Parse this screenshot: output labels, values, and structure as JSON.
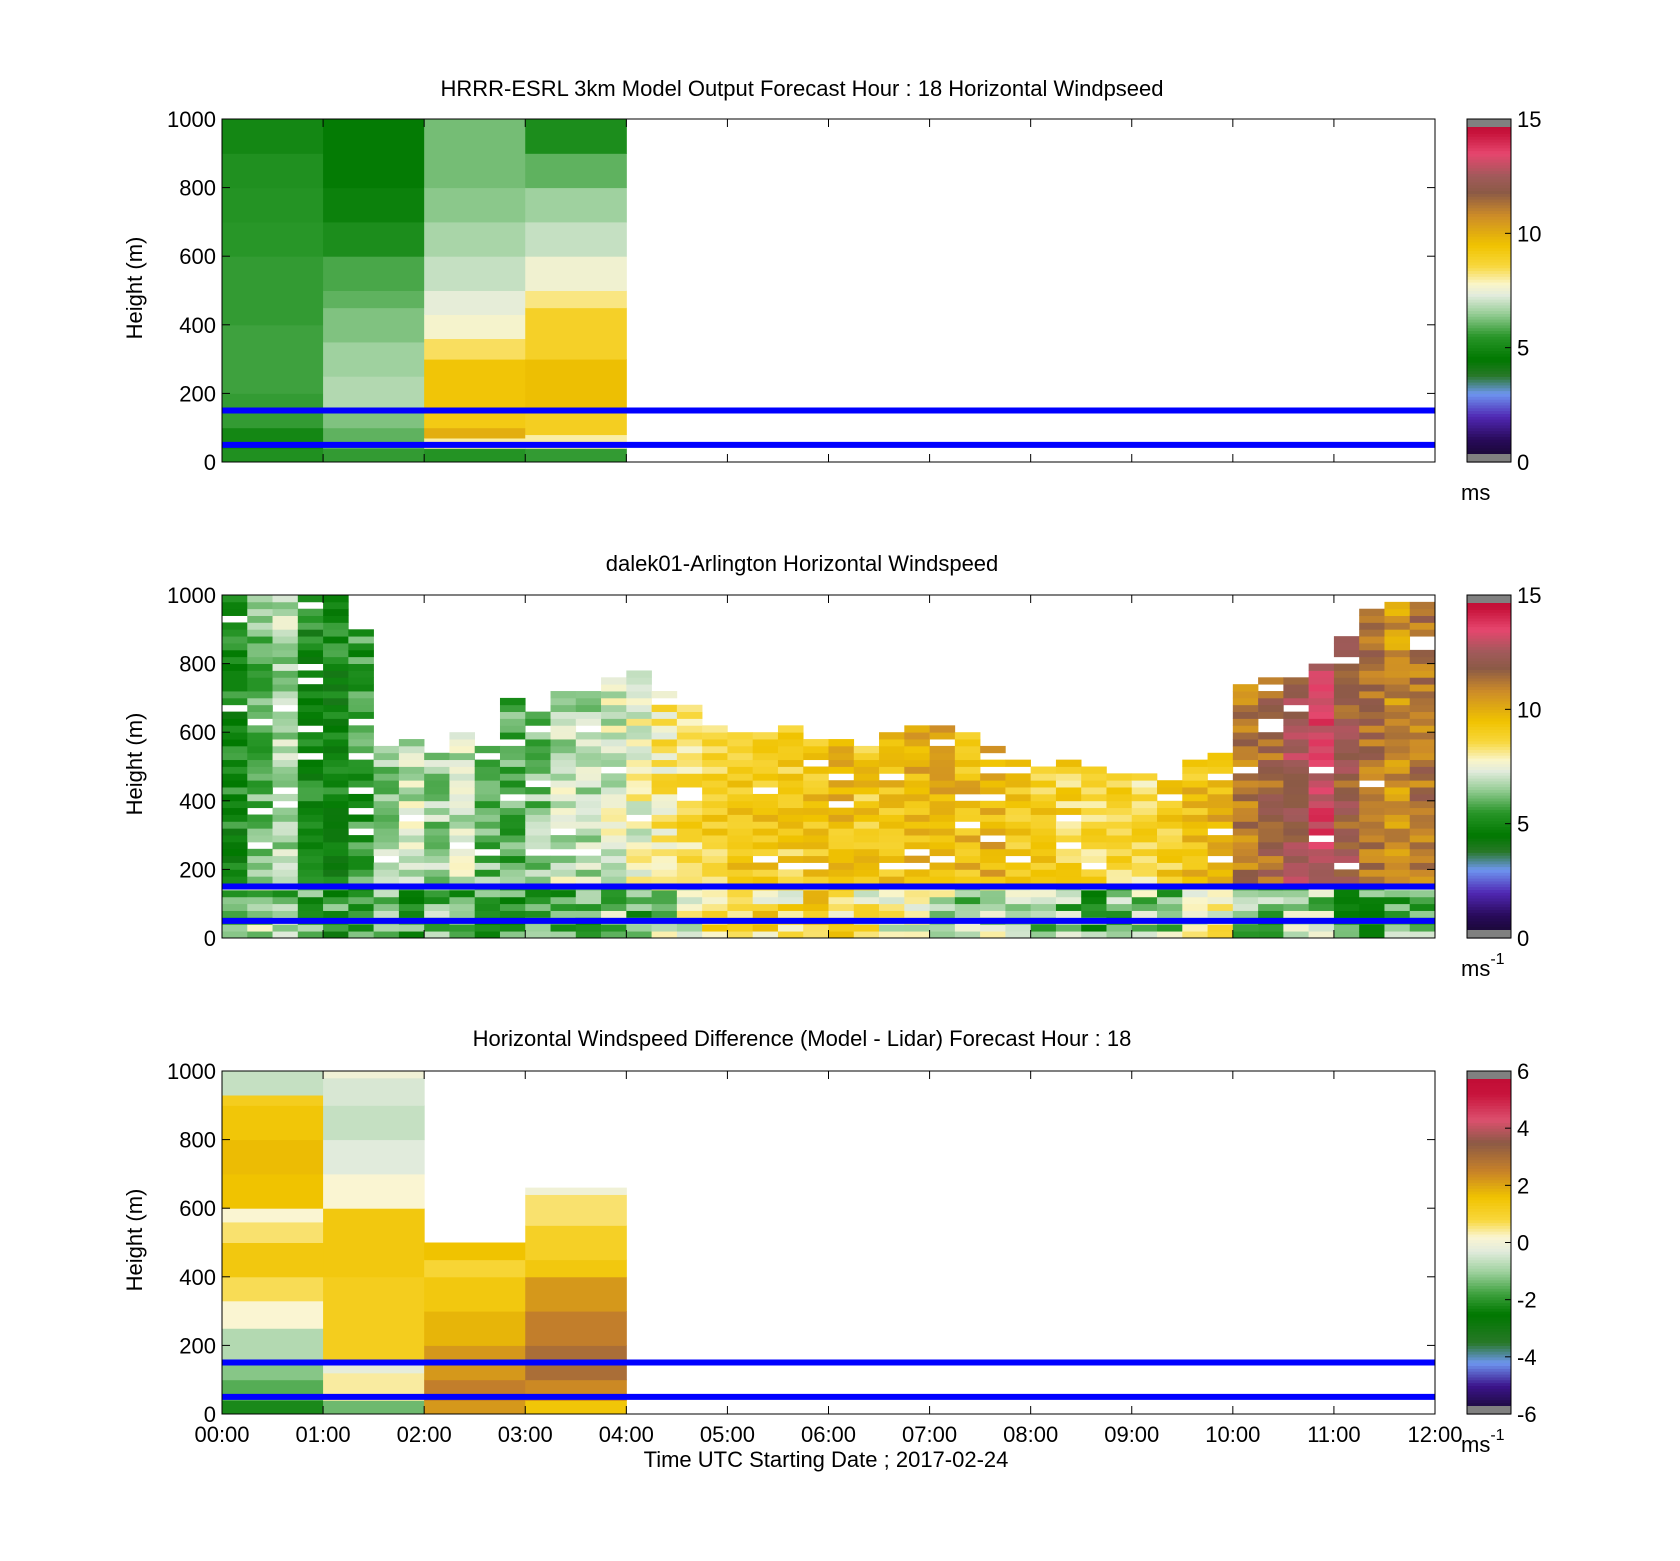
{
  "figure": {
    "xlabel": "Time UTC  Starting Date ; 2017-02-24",
    "x_tick_labels": [
      "00:00",
      "01:00",
      "02:00",
      "03:00",
      "04:00",
      "05:00",
      "06:00",
      "07:00",
      "08:00",
      "09:00",
      "10:00",
      "11:00",
      "12:00"
    ]
  },
  "chart_data": [
    {
      "type": "heatmap",
      "title": "HRRR-ESRL 3km Model Output   Forecast Hour : 18 Horizontal Windpseed",
      "ylabel": "Height (m)",
      "xlim": [
        0,
        12
      ],
      "ylim": [
        0,
        1000
      ],
      "y_ticks": [
        "0",
        "200",
        "400",
        "600",
        "800",
        "1000"
      ],
      "colorbar": {
        "ticks": [
          "0",
          "5",
          "10",
          "15"
        ],
        "range": [
          0,
          15
        ],
        "unit": "ms",
        "unit_sup": ""
      },
      "reference_lines_m": [
        50,
        150
      ],
      "grid": false,
      "x_hours": [
        0,
        1,
        2,
        3
      ],
      "cell_width_hours": 1,
      "heights_m": [
        [
          0,
          1000
        ]
      ],
      "values": [
        [
          [
            0,
            40,
            5.3
          ],
          [
            40,
            100,
            5.0
          ],
          [
            100,
            200,
            5.6
          ],
          [
            200,
            400,
            5.7
          ],
          [
            400,
            600,
            5.6
          ],
          [
            600,
            700,
            5.5
          ],
          [
            700,
            800,
            5.4
          ],
          [
            800,
            900,
            5.3
          ],
          [
            900,
            1000,
            5.0
          ]
        ],
        [
          [
            0,
            40,
            5.6
          ],
          [
            40,
            100,
            6.0
          ],
          [
            100,
            150,
            6.3
          ],
          [
            150,
            250,
            6.8
          ],
          [
            250,
            350,
            6.6
          ],
          [
            350,
            450,
            6.3
          ],
          [
            450,
            500,
            6.0
          ],
          [
            500,
            600,
            5.8
          ],
          [
            600,
            700,
            5.2
          ],
          [
            700,
            800,
            4.8
          ],
          [
            800,
            1000,
            4.6
          ]
        ],
        [
          [
            0,
            40,
            5.4
          ],
          [
            40,
            70,
            8.0
          ],
          [
            70,
            100,
            10.0
          ],
          [
            100,
            150,
            9.2
          ],
          [
            150,
            300,
            9.4
          ],
          [
            300,
            360,
            8.4
          ],
          [
            360,
            430,
            7.7
          ],
          [
            430,
            500,
            7.4
          ],
          [
            500,
            600,
            7.0
          ],
          [
            600,
            700,
            6.7
          ],
          [
            700,
            800,
            6.4
          ],
          [
            800,
            1000,
            6.2
          ]
        ],
        [
          [
            0,
            40,
            5.6
          ],
          [
            40,
            80,
            8.0
          ],
          [
            80,
            150,
            9.0
          ],
          [
            150,
            300,
            9.6
          ],
          [
            300,
            450,
            8.9
          ],
          [
            450,
            500,
            8.2
          ],
          [
            500,
            600,
            7.6
          ],
          [
            600,
            700,
            7.0
          ],
          [
            700,
            800,
            6.6
          ],
          [
            800,
            900,
            6.0
          ],
          [
            900,
            1000,
            5.2
          ]
        ]
      ]
    },
    {
      "type": "heatmap",
      "title": "dalek01-Arlington  Horizontal Windspeed",
      "ylabel": "Height (m)",
      "xlim": [
        0,
        12
      ],
      "ylim": [
        0,
        1000
      ],
      "y_ticks": [
        "0",
        "200",
        "400",
        "600",
        "800",
        "1000"
      ],
      "colorbar": {
        "ticks": [
          "0",
          "5",
          "10",
          "15"
        ],
        "range": [
          0,
          15
        ],
        "unit": "ms",
        "unit_sup": "-1"
      },
      "reference_lines_m": [
        50,
        150
      ],
      "grid": false,
      "x_hours": [
        0.0,
        0.25,
        0.5,
        0.75,
        1.0,
        1.25,
        1.5,
        1.75,
        2.0,
        2.25,
        2.5,
        2.75,
        3.0,
        3.25,
        3.5,
        3.75,
        4.0,
        4.25,
        4.5,
        4.75,
        5.0,
        5.25,
        5.5,
        5.75,
        6.0,
        6.25,
        6.5,
        6.75,
        7.0,
        7.25,
        7.5,
        7.75,
        8.0,
        8.25,
        8.5,
        8.75,
        9.0,
        9.25,
        9.5,
        9.75,
        10.0,
        10.25,
        10.5,
        10.75,
        11.0,
        11.25,
        11.5,
        11.75
      ],
      "cell_width_hours": 0.25,
      "column_top_m": [
        1000,
        1000,
        1000,
        1000,
        1000,
        900,
        560,
        580,
        540,
        600,
        560,
        700,
        660,
        720,
        740,
        760,
        780,
        720,
        680,
        620,
        600,
        600,
        640,
        580,
        580,
        560,
        600,
        620,
        640,
        600,
        560,
        520,
        520,
        520,
        500,
        480,
        480,
        460,
        520,
        540,
        740,
        760,
        760,
        800,
        880,
        960,
        980,
        980
      ],
      "column_base_kmh": [
        5.0,
        6.2,
        6.8,
        5.0,
        5.0,
        5.5,
        6.5,
        7.0,
        6.6,
        7.0,
        6.2,
        5.8,
        6.4,
        7.0,
        6.8,
        7.2,
        7.6,
        8.2,
        8.6,
        8.8,
        9.2,
        9.4,
        9.0,
        9.4,
        9.6,
        9.2,
        9.4,
        9.8,
        10.0,
        9.6,
        9.8,
        9.2,
        9.0,
        8.8,
        8.6,
        8.9,
        8.5,
        9.0,
        9.4,
        9.8,
        11.0,
        11.5,
        12.4,
        13.2,
        12.0,
        11.4,
        10.6,
        11.2
      ],
      "column_low_kmh": [
        6.4,
        6.6,
        6.2,
        5.6,
        5.4,
        6.0,
        6.2,
        5.6,
        6.4,
        5.8,
        5.4,
        5.2,
        5.6,
        5.4,
        6.0,
        6.4,
        6.0,
        7.0,
        7.2,
        8.4,
        9.0,
        8.6,
        8.4,
        9.2,
        8.8,
        8.0,
        7.4,
        7.0,
        7.2,
        6.8,
        7.0,
        6.6,
        6.4,
        6.2,
        5.8,
        6.0,
        6.8,
        6.4,
        7.4,
        7.6,
        6.0,
        6.2,
        6.6,
        6.8,
        5.8,
        5.6,
        6.0,
        6.2
      ]
    },
    {
      "type": "heatmap",
      "title": "Horizontal Windspeed Difference (Model - Lidar) Forecast Hour : 18",
      "ylabel": "Height (m)",
      "xlim": [
        0,
        12
      ],
      "ylim": [
        0,
        1000
      ],
      "y_ticks": [
        "0",
        "200",
        "400",
        "600",
        "800",
        "1000"
      ],
      "colorbar": {
        "ticks": [
          "-6",
          "-4",
          "-2",
          "0",
          "2",
          "4",
          "6"
        ],
        "range": [
          -6,
          6
        ],
        "unit": "ms",
        "unit_sup": "-1"
      },
      "reference_lines_m": [
        50,
        150
      ],
      "grid": false,
      "x_hours": [
        0,
        1,
        2,
        3
      ],
      "cell_width_hours": 1,
      "values": [
        [
          [
            0,
            40,
            -2.2
          ],
          [
            40,
            100,
            -1.6
          ],
          [
            100,
            160,
            -1.2
          ],
          [
            160,
            250,
            -0.8
          ],
          [
            250,
            330,
            0.2
          ],
          [
            330,
            400,
            0.7
          ],
          [
            400,
            500,
            1.4
          ],
          [
            500,
            560,
            0.6
          ],
          [
            560,
            600,
            0.2
          ],
          [
            600,
            700,
            1.6
          ],
          [
            700,
            800,
            1.7
          ],
          [
            800,
            900,
            1.5
          ],
          [
            900,
            930,
            1.2
          ],
          [
            930,
            1000,
            -0.6
          ]
        ],
        [
          [
            0,
            40,
            -1.4
          ],
          [
            40,
            120,
            0.4
          ],
          [
            120,
            160,
            -0.2
          ],
          [
            160,
            400,
            1.2
          ],
          [
            400,
            600,
            1.4
          ],
          [
            600,
            700,
            0.2
          ],
          [
            700,
            800,
            -0.3
          ],
          [
            800,
            900,
            -0.6
          ],
          [
            900,
            980,
            -0.4
          ],
          [
            980,
            1000,
            0.0
          ]
        ],
        [
          [
            0,
            40,
            2.2
          ],
          [
            40,
            100,
            2.6
          ],
          [
            100,
            200,
            2.2
          ],
          [
            200,
            300,
            1.8
          ],
          [
            300,
            400,
            1.4
          ],
          [
            400,
            450,
            0.9
          ],
          [
            450,
            500,
            1.6
          ]
        ],
        [
          [
            0,
            40,
            1.5
          ],
          [
            40,
            100,
            2.4
          ],
          [
            100,
            200,
            3.0
          ],
          [
            200,
            300,
            2.6
          ],
          [
            300,
            400,
            2.2
          ],
          [
            400,
            450,
            1.4
          ],
          [
            450,
            550,
            1.1
          ],
          [
            550,
            640,
            0.6
          ],
          [
            640,
            660,
            0.0
          ]
        ]
      ]
    }
  ]
}
